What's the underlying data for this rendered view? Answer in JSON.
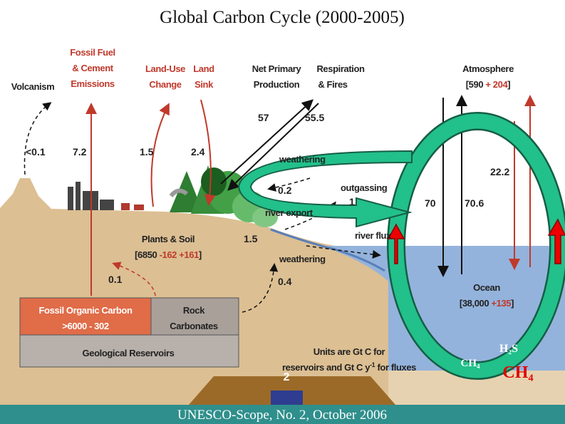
{
  "title": "Global Carbon Cycle (2000-2005)",
  "footer": "UNESCO-Scope, No. 2, October 2006",
  "labels": {
    "volcanism": "Volcanism",
    "fossil_fuel": [
      "Fossil Fuel",
      "& Cement",
      "Emissions"
    ],
    "land_use": [
      "Land-Use",
      "Change"
    ],
    "land_sink": [
      "Land",
      "Sink"
    ],
    "npp": [
      "Net Primary",
      "Production"
    ],
    "respiration": [
      "Respiration",
      "& Fires"
    ],
    "atmosphere": "Atmosphere",
    "weathering_top": "weathering",
    "outgassing": "outgassing",
    "river_export": "river export",
    "river_flux": "river flux",
    "weathering_bottom": "weathering",
    "plants_soil": "Plants & Soil",
    "ocean": "Ocean"
  },
  "stocks": {
    "atmosphere": {
      "open": "[590",
      "change": "+ 204",
      "close": "]"
    },
    "plants_soil": {
      "open": "[6850",
      "loss": "-162",
      "gain": "+161",
      "close": "]"
    },
    "ocean": {
      "open": "[38,000",
      "change": "+135",
      "close": "]"
    }
  },
  "fluxes": {
    "volcanism": "<0.1",
    "fossil": "7.2",
    "land_use": "1.5",
    "land_sink": "2.4",
    "npp": "57",
    "respiration": "55.5",
    "weathering_atm": "0.2",
    "outgassing": "1",
    "river_export": "1.5",
    "weathering_rock": "0.4",
    "fossil_leak": "0.1",
    "ocean_down": "70",
    "ocean_up": "70.6",
    "ocean_sink": "22.2"
  },
  "reservoirs": {
    "fossil_organic": [
      "Fossil Organic Carbon",
      ">6000 - 302"
    ],
    "rock": [
      "Rock",
      "Carbonates"
    ],
    "geological": "Geological Reservoirs"
  },
  "units": {
    "line1": "Units are Gt C for",
    "line2a": "reservoirs and Gt C y",
    "sup": "-1",
    "line2b": " for fluxes"
  },
  "gases": {
    "h2s": "H₂S",
    "ch4_small": "CH₄",
    "ch4_large": "CH₄"
  },
  "bottom_marker": "2"
}
